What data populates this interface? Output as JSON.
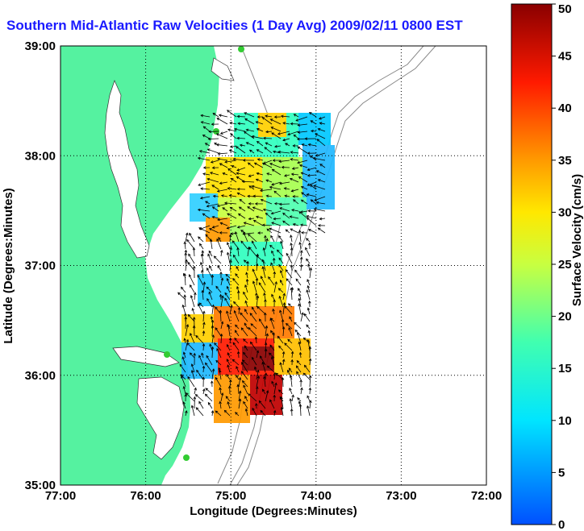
{
  "chart_data": {
    "type": "heatmap",
    "title": "Southern Mid-Atlantic Raw Velocities (1 Day Avg) 2009/02/11 0800 EST",
    "xlabel": "Longitude (Degrees:Minutes)",
    "ylabel": "Latitude (Degrees:Minutes)",
    "xticks": [
      "77:00",
      "76:00",
      "75:00",
      "74:00",
      "73:00",
      "72:00"
    ],
    "yticks": [
      "35:00",
      "36:00",
      "37:00",
      "38:00",
      "39:00"
    ],
    "xlim": [
      -77,
      -72
    ],
    "ylim": [
      35,
      39
    ],
    "grid": "on",
    "colorbar": {
      "label": "Surface Velocity (cm/s)",
      "ticks": [
        0,
        5,
        10,
        15,
        20,
        25,
        30,
        35,
        40,
        45,
        50
      ],
      "range": [
        0,
        50
      ]
    }
  },
  "colors": {
    "land": "#55f2a0",
    "water": "#ffffff",
    "title": "#1a1aff",
    "bathymetry": "#888888",
    "arrows": "#000000",
    "stations": "#33cc33"
  }
}
